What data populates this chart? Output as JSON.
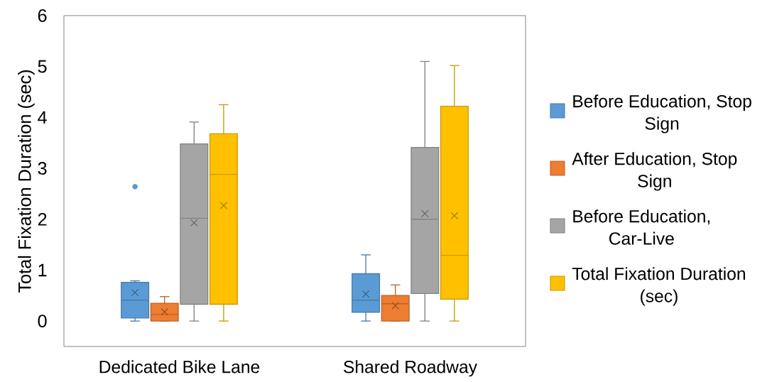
{
  "chart_data": {
    "type": "box",
    "ylabel": "Total Fixation Duration (sec)",
    "categories": [
      "Dedicated Bike Lane",
      "Shared Roadway"
    ],
    "ylim": [
      -0.5,
      6
    ],
    "yticks": [
      0,
      1,
      2,
      3,
      4,
      5,
      6
    ],
    "legend": "right",
    "series": [
      {
        "name": "Before Education, Stop Sign",
        "color": "#5b9bd5",
        "boxes": [
          {
            "low": 0,
            "q1": 0.06,
            "median": 0.41,
            "q3": 0.76,
            "high": 0.79,
            "mean": 0.56,
            "outliers": [
              2.64
            ]
          },
          {
            "low": 0,
            "q1": 0.17,
            "median": 0.41,
            "q3": 0.93,
            "high": 1.3,
            "mean": 0.53
          }
        ]
      },
      {
        "name": "After Education, Stop Sign",
        "color": "#ed7d31",
        "boxes": [
          {
            "low": 0,
            "q1": 0,
            "median": 0.13,
            "q3": 0.35,
            "high": 0.48,
            "mean": 0.18
          },
          {
            "low": 0,
            "q1": 0,
            "median": 0.34,
            "q3": 0.5,
            "high": 0.71,
            "mean": 0.3
          }
        ]
      },
      {
        "name": "Before Education, Car-Live",
        "color": "#a5a5a5",
        "boxes": [
          {
            "low": 0,
            "q1": 0.33,
            "median": 2.02,
            "q3": 3.48,
            "high": 3.91,
            "mean": 1.93
          },
          {
            "low": 0,
            "q1": 0.54,
            "median": 2.0,
            "q3": 3.41,
            "high": 5.1,
            "mean": 2.11
          }
        ]
      },
      {
        "name": "Total Fixation Duration (sec)",
        "color": "#ffc000",
        "boxes": [
          {
            "low": 0,
            "q1": 0.33,
            "median": 2.88,
            "q3": 3.68,
            "high": 4.25,
            "mean": 2.27
          },
          {
            "low": 0,
            "q1": 0.43,
            "median": 1.29,
            "q3": 4.22,
            "high": 5.02,
            "mean": 2.07
          }
        ]
      }
    ]
  }
}
